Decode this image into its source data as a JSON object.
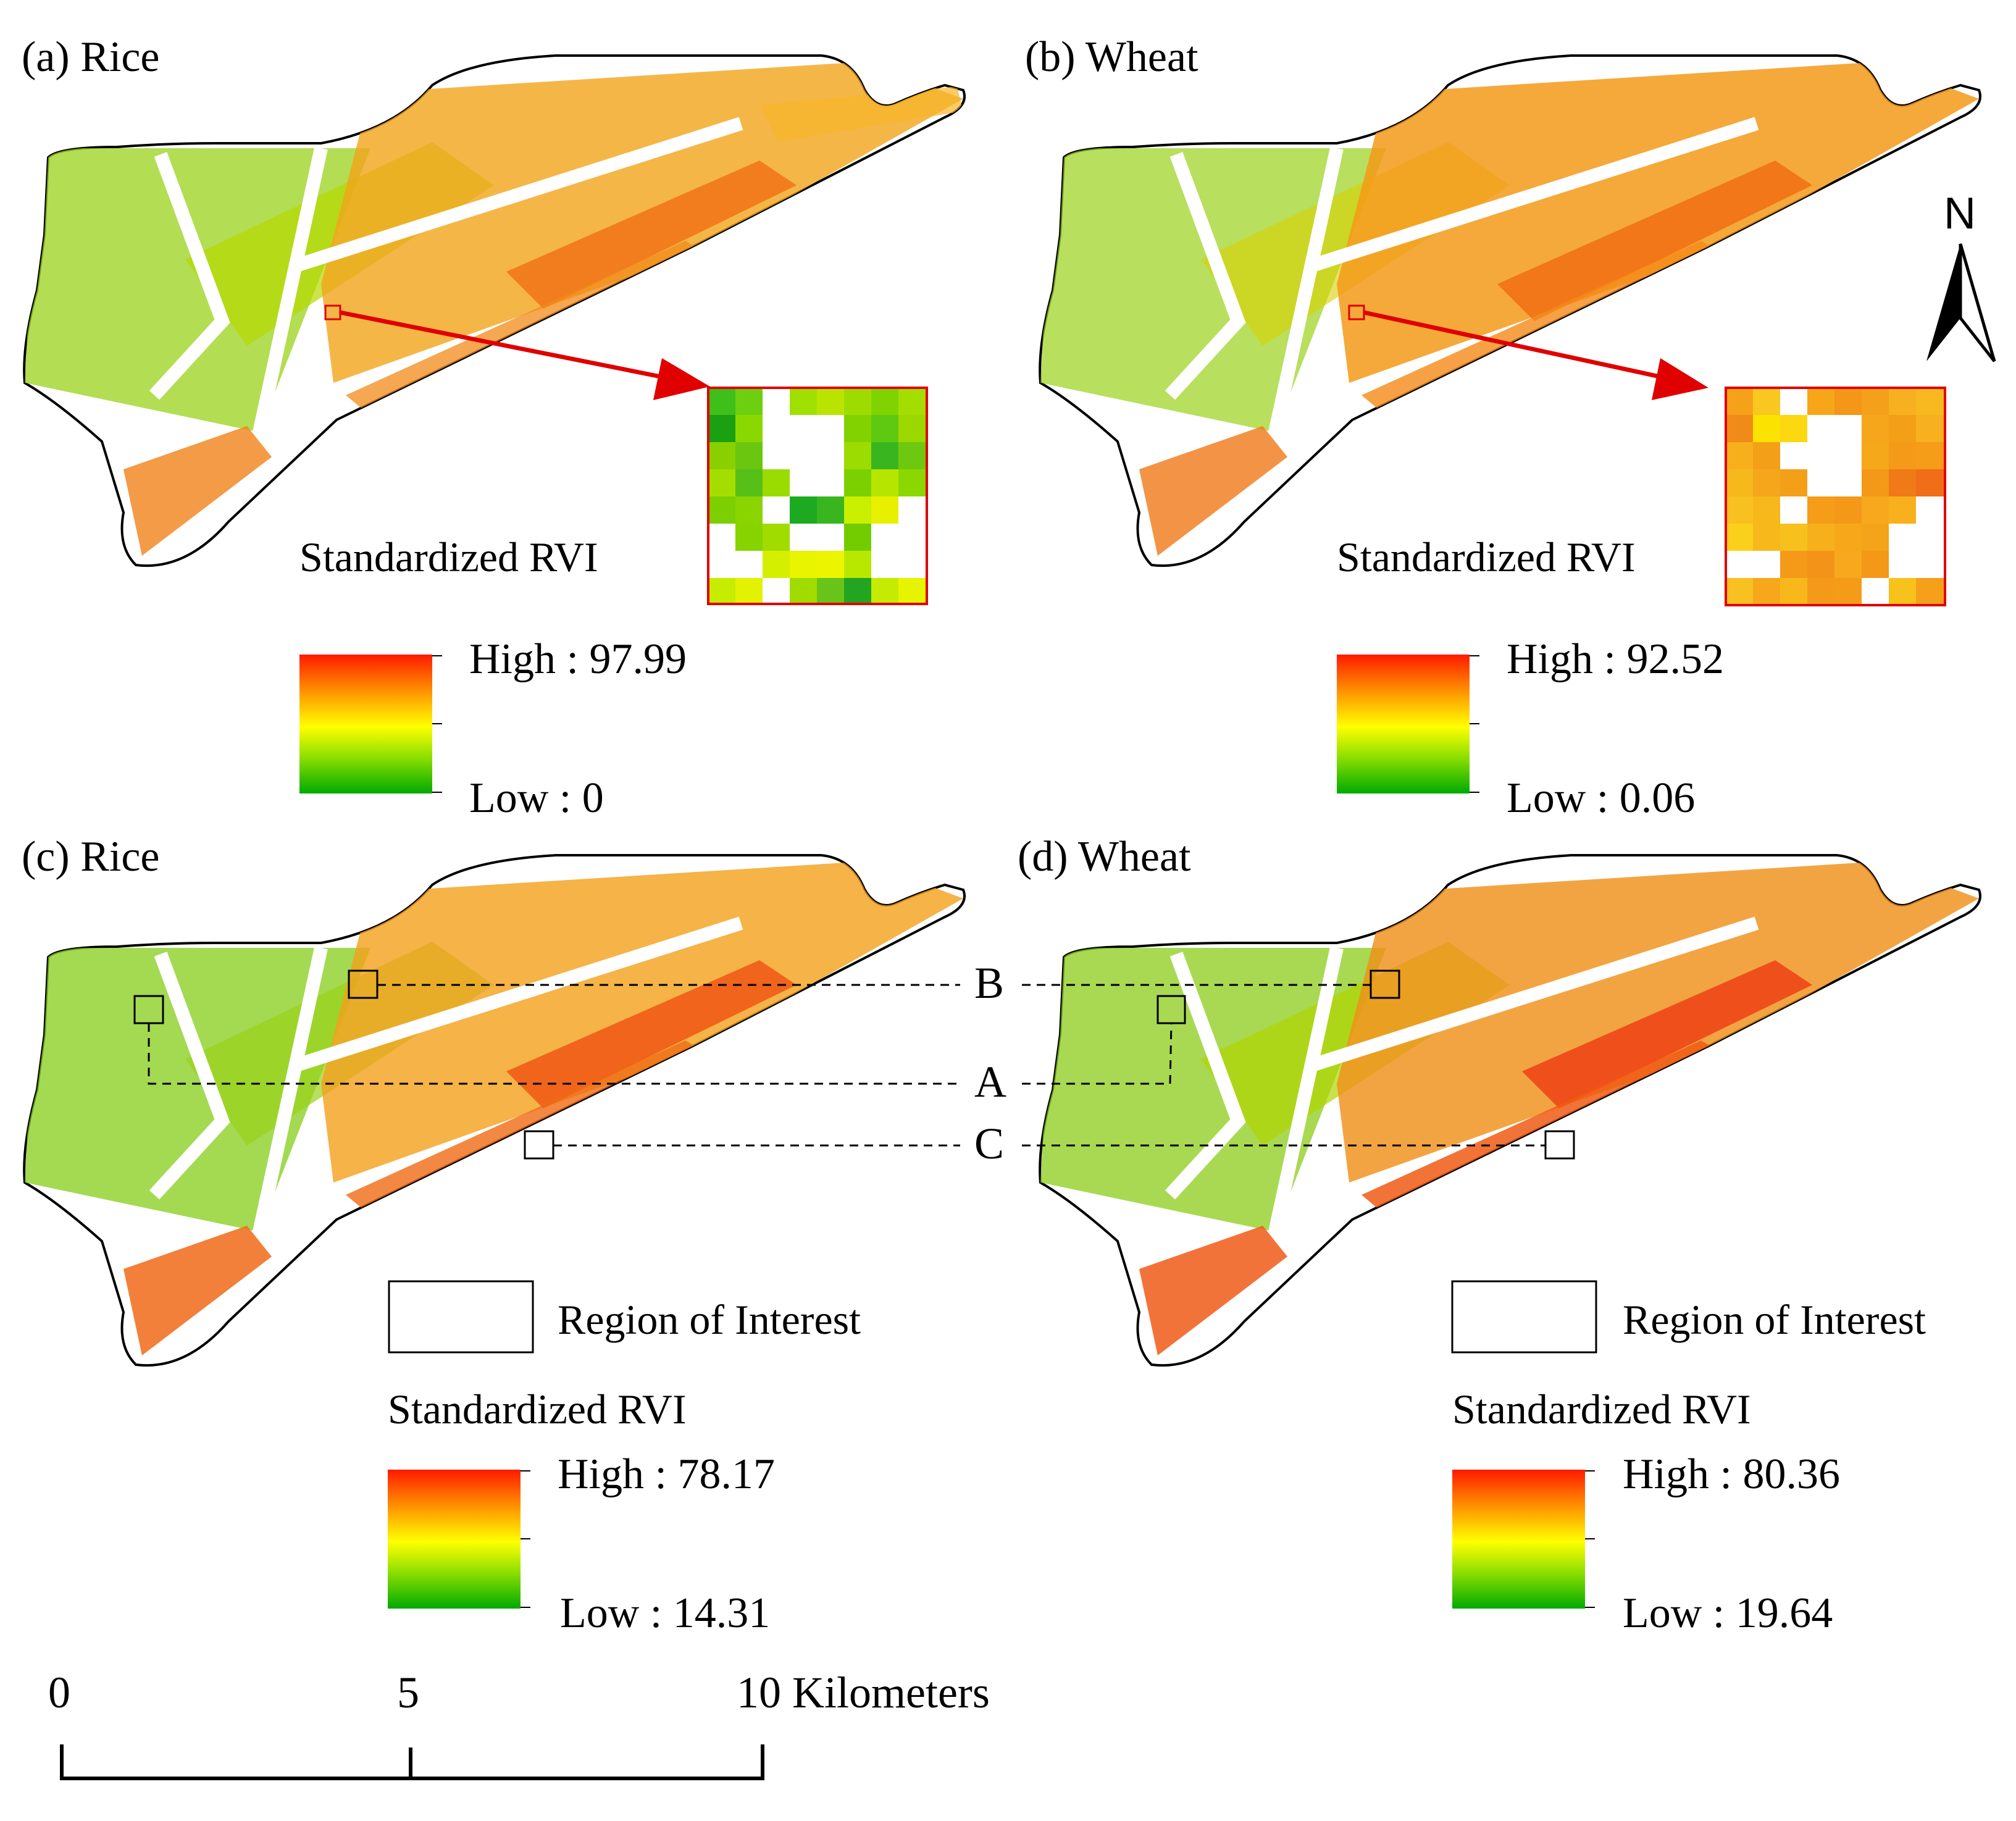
{
  "panels": [
    {
      "id": "a",
      "label": "(a) Rice",
      "legend_title": "Standardized RVI",
      "high_label": "High : 97.99",
      "low_label": "Low : 0",
      "high": 97.99,
      "low": 0
    },
    {
      "id": "b",
      "label": "(b) Wheat",
      "legend_title": "Standardized RVI",
      "high_label": "High : 92.52",
      "low_label": "Low : 0.06",
      "high": 92.52,
      "low": 0.06
    },
    {
      "id": "c",
      "label": "(c) Rice",
      "legend_title": "Standardized RVI",
      "high_label": "High : 78.17",
      "low_label": "Low : 14.31",
      "high": 78.17,
      "low": 14.31
    },
    {
      "id": "d",
      "label": "(d) Wheat",
      "legend_title": "Standardized RVI",
      "high_label": "High : 80.36",
      "low_label": "Low : 19.64",
      "high": 80.36,
      "low": 19.64
    }
  ],
  "roi": {
    "legend_label": "Region of Interest",
    "markers": [
      "A",
      "B",
      "C"
    ]
  },
  "north_arrow": {
    "letter": "N"
  },
  "scale_bar": {
    "ticks": [
      "0",
      "5",
      "10 Kilometers"
    ]
  },
  "colors": {
    "high": "#ff1a00",
    "mid_high": "#ff9900",
    "mid": "#ffff00",
    "mid_low": "#88dd00",
    "low": "#00aa00",
    "inset_border": "#e00000",
    "arrow": "#e00000"
  }
}
